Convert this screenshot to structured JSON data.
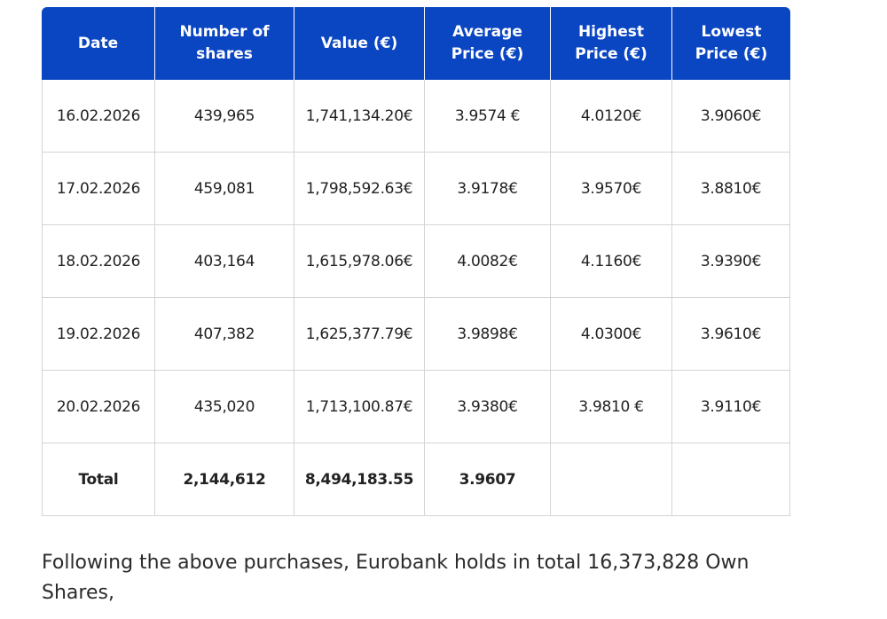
{
  "table": {
    "headers": [
      "Date",
      "Number of shares",
      "Value (€)",
      "Average Price (€)",
      "Highest Price (€)",
      "Lowest Price (€)"
    ],
    "rows": [
      [
        "16.02.2026",
        "439,965",
        "1,741,134.20€",
        "3.9574 €",
        "4.0120€",
        "3.9060€"
      ],
      [
        "17.02.2026",
        "459,081",
        "1,798,592.63€",
        "3.9178€",
        "3.9570€",
        "3.8810€"
      ],
      [
        "18.02.2026",
        "403,164",
        "1,615,978.06€",
        "4.0082€",
        "4.1160€",
        "3.9390€"
      ],
      [
        "19.02.2026",
        "407,382",
        "1,625,377.79€",
        "3.9898€",
        "4.0300€",
        "3.9610€"
      ],
      [
        "20.02.2026",
        "435,020",
        "1,713,100.87€",
        "3.9380€",
        "3.9810 €",
        "3.9110€"
      ]
    ],
    "total": [
      "Total",
      "2,144,612",
      "8,494,183.55",
      "3.9607"
    ]
  },
  "paragraph": "Following the above purchases, Eurobank holds in total 16,373,828 Own Shares,"
}
